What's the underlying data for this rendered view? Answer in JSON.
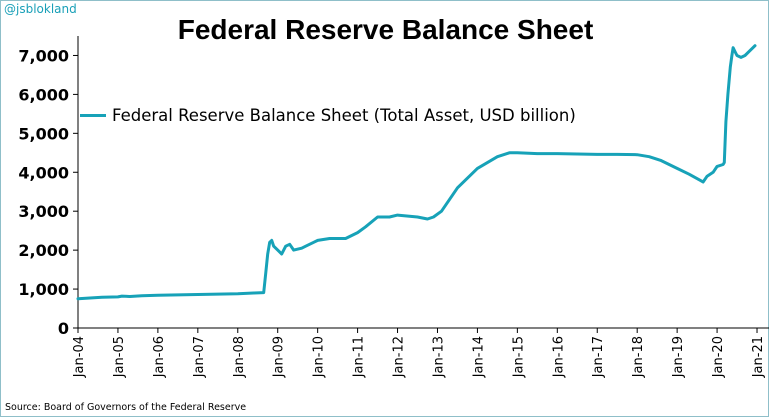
{
  "handle": "@jsblokland",
  "source": "Source: Board of Governors of the Federal Reserve",
  "colors": {
    "line": "#17a2b8",
    "axis": "#000000",
    "handle": "#1aa0b8"
  },
  "chart_data": {
    "type": "line",
    "title": "Federal Reserve Balance Sheet",
    "xlabel": "",
    "ylabel": "",
    "legend_position": "top-left",
    "grid": false,
    "ylim": [
      0,
      7500
    ],
    "yticks": [
      0,
      1000,
      2000,
      3000,
      4000,
      5000,
      6000,
      7000
    ],
    "ytick_labels": [
      "0",
      "1,000",
      "2,000",
      "3,000",
      "4,000",
      "5,000",
      "6,000",
      "7,000"
    ],
    "xlim": [
      2004.0,
      2021.3
    ],
    "xticks": [
      2004,
      2005,
      2006,
      2007,
      2008,
      2009,
      2010,
      2011,
      2012,
      2013,
      2014,
      2015,
      2016,
      2017,
      2018,
      2019,
      2020,
      2021
    ],
    "xtick_labels": [
      "Jan-04",
      "Jan-05",
      "Jan-06",
      "Jan-07",
      "Jan-08",
      "Jan-09",
      "Jan-10",
      "Jan-11",
      "Jan-12",
      "Jan-13",
      "Jan-14",
      "Jan-15",
      "Jan-16",
      "Jan-17",
      "Jan-18",
      "Jan-19",
      "Jan-20",
      "Jan-21"
    ],
    "series": [
      {
        "name": "Federal Reserve Balance Sheet (Total Asset, USD billion)",
        "x": [
          2004.0,
          2004.3,
          2004.6,
          2005.0,
          2005.1,
          2005.3,
          2005.6,
          2006.0,
          2006.5,
          2007.0,
          2007.5,
          2008.0,
          2008.4,
          2008.65,
          2008.7,
          2008.75,
          2008.8,
          2008.85,
          2008.9,
          2009.0,
          2009.1,
          2009.2,
          2009.3,
          2009.4,
          2009.6,
          2009.7,
          2009.9,
          2010.0,
          2010.3,
          2010.7,
          2011.0,
          2011.2,
          2011.5,
          2011.8,
          2012.0,
          2012.5,
          2012.75,
          2012.9,
          2013.1,
          2013.5,
          2014.0,
          2014.5,
          2014.8,
          2015.0,
          2015.5,
          2016.0,
          2016.5,
          2017.0,
          2017.5,
          2018.0,
          2018.3,
          2018.6,
          2019.0,
          2019.3,
          2019.6,
          2019.65,
          2019.75,
          2019.9,
          2020.0,
          2020.15,
          2020.18,
          2020.22,
          2020.27,
          2020.33,
          2020.37,
          2020.4,
          2020.45,
          2020.5,
          2020.6,
          2020.7,
          2020.8,
          2020.95
        ],
        "y": [
          750,
          770,
          790,
          800,
          820,
          810,
          830,
          840,
          850,
          860,
          870,
          880,
          900,
          910,
          1400,
          1900,
          2200,
          2250,
          2100,
          2000,
          1900,
          2100,
          2150,
          2000,
          2050,
          2100,
          2200,
          2250,
          2300,
          2300,
          2450,
          2600,
          2850,
          2850,
          2900,
          2850,
          2800,
          2850,
          3000,
          3600,
          4100,
          4400,
          4500,
          4500,
          4480,
          4480,
          4470,
          4460,
          4460,
          4450,
          4400,
          4300,
          4100,
          3950,
          3780,
          3750,
          3900,
          4000,
          4150,
          4200,
          4250,
          5300,
          6000,
          6700,
          7000,
          7200,
          7100,
          7000,
          6950,
          7000,
          7100,
          7250
        ]
      }
    ]
  }
}
